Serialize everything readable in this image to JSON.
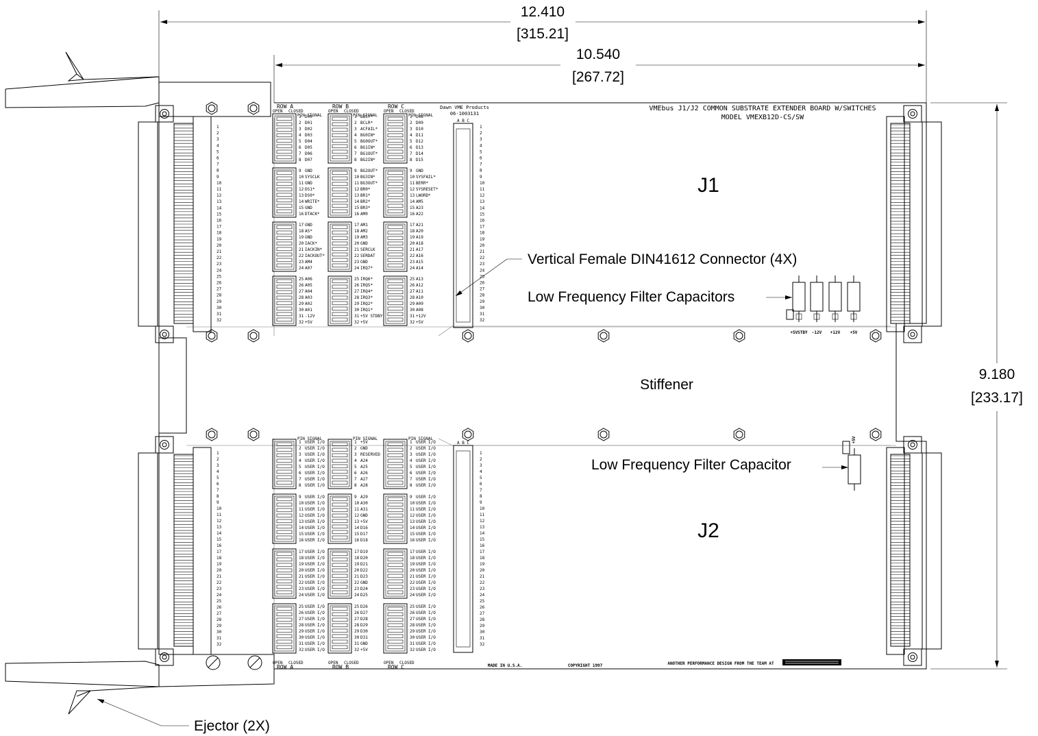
{
  "dimensions": {
    "overall_width": "12.410",
    "overall_width_mm": "[315.21]",
    "board_width": "10.540",
    "board_width_mm": "[267.72]",
    "height": "9.180",
    "height_mm": "[233.17]"
  },
  "title": {
    "line1": "VMEbus J1/J2 COMMON SUBSTRATE EXTENDER BOARD W/SWITCHES",
    "line2": "MODEL VMEXB12D-CS/SW"
  },
  "maker": {
    "line1": "Dawn VME Products",
    "line2": "06-1003131"
  },
  "labels": {
    "j1": "J1",
    "j2": "J2",
    "stiffener": "Stiffener",
    "connector_callout": "Vertical Female DIN41612 Connector (4X)",
    "caps_callout": "Low Frequency Filter Capacitors",
    "cap_callout": "Low Frequency Filter Capacitor",
    "ejector_callout": "Ejector (2X)"
  },
  "footer": {
    "made_in": "MADE IN U.S.A.",
    "copyright": "COPYRIGHT 1997",
    "tagline": "ANOTHER PERFORMANCE DESIGN FROM THE TEAM AT"
  },
  "switch_headers": {
    "row_a": "ROW A",
    "row_b": "ROW B",
    "row_c": "ROW C",
    "open": "OPEN",
    "closed": "CLOSED",
    "pin_signal": "PIN SIGNAL",
    "abc": "A B C"
  },
  "cap_labels": [
    "+5VSTBY",
    "-12V",
    "+12V",
    "+5V"
  ],
  "j2_cap_label": "+5V",
  "pin_numbers": [
    "1",
    "2",
    "3",
    "4",
    "5",
    "6",
    "7",
    "8",
    "9",
    "10",
    "11",
    "12",
    "13",
    "14",
    "15",
    "16",
    "17",
    "18",
    "19",
    "20",
    "21",
    "22",
    "23",
    "24",
    "25",
    "26",
    "27",
    "28",
    "29",
    "30",
    "31",
    "32"
  ],
  "j1_signals": {
    "row_a": [
      "D00",
      "D01",
      "D02",
      "D03",
      "D04",
      "D05",
      "D06",
      "D07",
      "GND",
      "SYSCLK",
      "GND",
      "DS1*",
      "DS0*",
      "WRITE*",
      "GND",
      "DTACK*",
      "GND",
      "AS*",
      "GND",
      "IACK*",
      "IACKIN*",
      "IACKOUT*",
      "AM4",
      "A07",
      "A06",
      "A05",
      "A04",
      "A03",
      "A02",
      "A01",
      "-12V",
      "+5V"
    ],
    "row_b": [
      "BBSY*",
      "BCLR*",
      "ACFAIL*",
      "BG0IN*",
      "BG0OUT*",
      "BG1IN*",
      "BG1OUT*",
      "BG2IN*",
      "BG2OUT*",
      "BG3IN*",
      "BG3OUT*",
      "BR0*",
      "BR1*",
      "BR2*",
      "BR3*",
      "AM0",
      "AM1",
      "AM2",
      "AM3",
      "GND",
      "SERCLK",
      "SERDAT",
      "GND",
      "IRQ7*",
      "IRQ6*",
      "IRQ5*",
      "IRQ4*",
      "IRQ3*",
      "IRQ2*",
      "IRQ1*",
      "+5V STDBY",
      "+5V"
    ],
    "row_c": [
      "D08",
      "D09",
      "D10",
      "D11",
      "D12",
      "D13",
      "D14",
      "D15",
      "GND",
      "SYSFAIL*",
      "BERR*",
      "SYSRESET*",
      "LWORD*",
      "AM5",
      "A23",
      "A22",
      "A21",
      "A20",
      "A19",
      "A18",
      "A17",
      "A16",
      "A15",
      "A14",
      "A13",
      "A12",
      "A11",
      "A10",
      "A09",
      "A08",
      "+12V",
      "+5V"
    ]
  },
  "j2_signals": {
    "row_a": [
      "USER I/O",
      "USER I/O",
      "USER I/O",
      "USER I/O",
      "USER I/O",
      "USER I/O",
      "USER I/O",
      "USER I/O",
      "USER I/O",
      "USER I/O",
      "USER I/O",
      "USER I/O",
      "USER I/O",
      "USER I/O",
      "USER I/O",
      "USER I/O",
      "USER I/O",
      "USER I/O",
      "USER I/O",
      "USER I/O",
      "USER I/O",
      "USER I/O",
      "USER I/O",
      "USER I/O",
      "USER I/O",
      "USER I/O",
      "USER I/O",
      "USER I/O",
      "USER I/O",
      "USER I/O",
      "USER I/O",
      "USER I/O"
    ],
    "row_b": [
      "+5V",
      "GND",
      "RESERVED",
      "A24",
      "A25",
      "A26",
      "A27",
      "A28",
      "A29",
      "A30",
      "A31",
      "GND",
      "+5V",
      "D16",
      "D17",
      "D18",
      "D19",
      "D20",
      "D21",
      "D22",
      "D23",
      "GND",
      "D24",
      "D25",
      "D26",
      "D27",
      "D28",
      "D29",
      "D30",
      "D31",
      "GND",
      "+5V"
    ],
    "row_c": [
      "USER I/O",
      "USER I/O",
      "USER I/O",
      "USER I/O",
      "USER I/O",
      "USER I/O",
      "USER I/O",
      "USER I/O",
      "USER I/O",
      "USER I/O",
      "USER I/O",
      "USER I/O",
      "USER I/O",
      "USER I/O",
      "USER I/O",
      "USER I/O",
      "USER I/O",
      "USER I/O",
      "USER I/O",
      "USER I/O",
      "USER I/O",
      "USER I/O",
      "USER I/O",
      "USER I/O",
      "USER I/O",
      "USER I/O",
      "USER I/O",
      "USER I/O",
      "USER I/O",
      "USER I/O",
      "USER I/O",
      "USER I/O"
    ]
  }
}
